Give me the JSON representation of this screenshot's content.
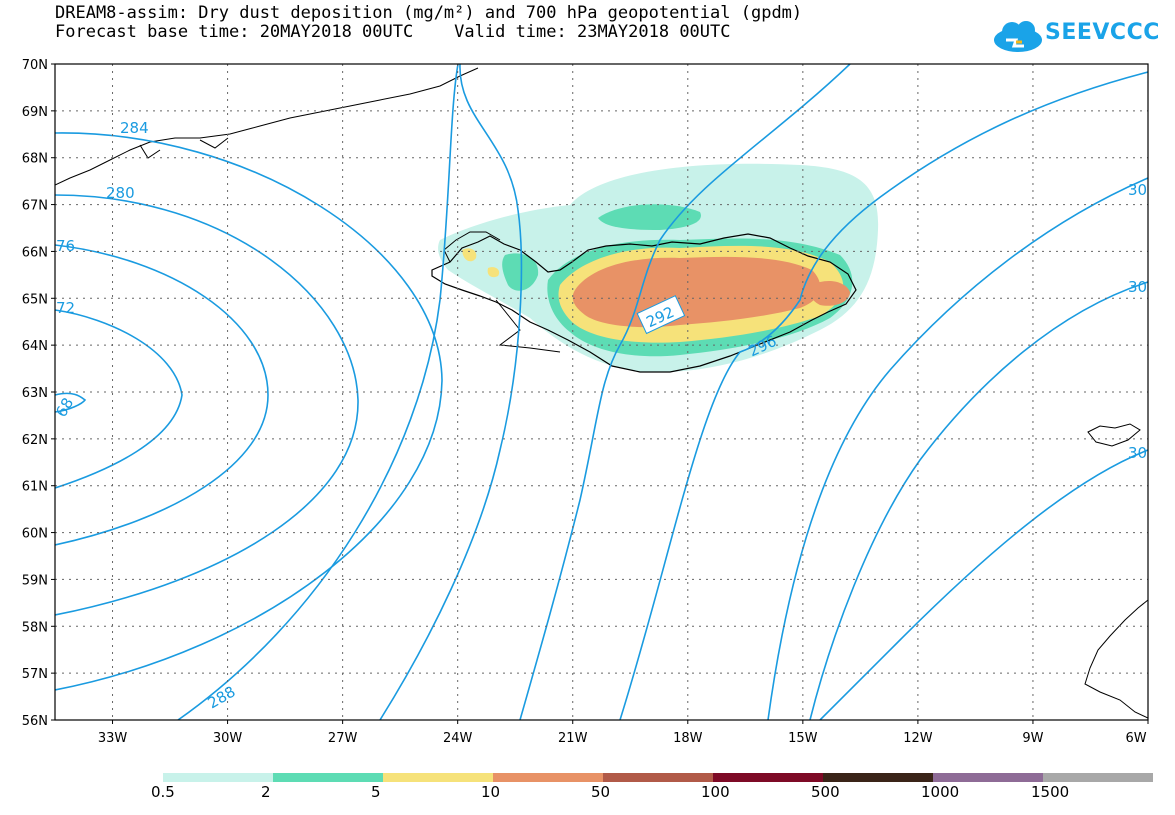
{
  "title": {
    "line1": "DREAM8-assim: Dry dust deposition (mg/m²) and 700 hPa geopotential (gpdm)",
    "line2": "Forecast base time: 20MAY2018 00UTC    Valid time: 23MAY2018 00UTC"
  },
  "logo": {
    "text": "SEEVCCC",
    "color": "#1aa3e8"
  },
  "map": {
    "lon_range": [
      -34.5,
      -6
    ],
    "lat_range": [
      56,
      70
    ],
    "lat_labels": [
      "70N",
      "69N",
      "68N",
      "67N",
      "66N",
      "65N",
      "64N",
      "63N",
      "62N",
      "61N",
      "60N",
      "59N",
      "58N",
      "57N",
      "56N"
    ],
    "lon_labels": [
      "33W",
      "30W",
      "27W",
      "24W",
      "21W",
      "18W",
      "15W",
      "12W",
      "9W",
      "6W"
    ],
    "contour_color": "#1a9be0",
    "contour_labels": [
      "284",
      "280",
      "76",
      "72",
      "68",
      "288",
      "292",
      "296",
      "30",
      "30",
      "30"
    ]
  },
  "legend": {
    "labels": [
      "0.5",
      "2",
      "5",
      "10",
      "50",
      "100",
      "500",
      "1000",
      "1500"
    ],
    "colors": [
      "#c8f2ea",
      "#5ddcb4",
      "#f6e27a",
      "#e89266",
      "#b15a48",
      "#7e0a26",
      "#3a2418",
      "#8e6b96",
      "#a8a8a8"
    ]
  }
}
